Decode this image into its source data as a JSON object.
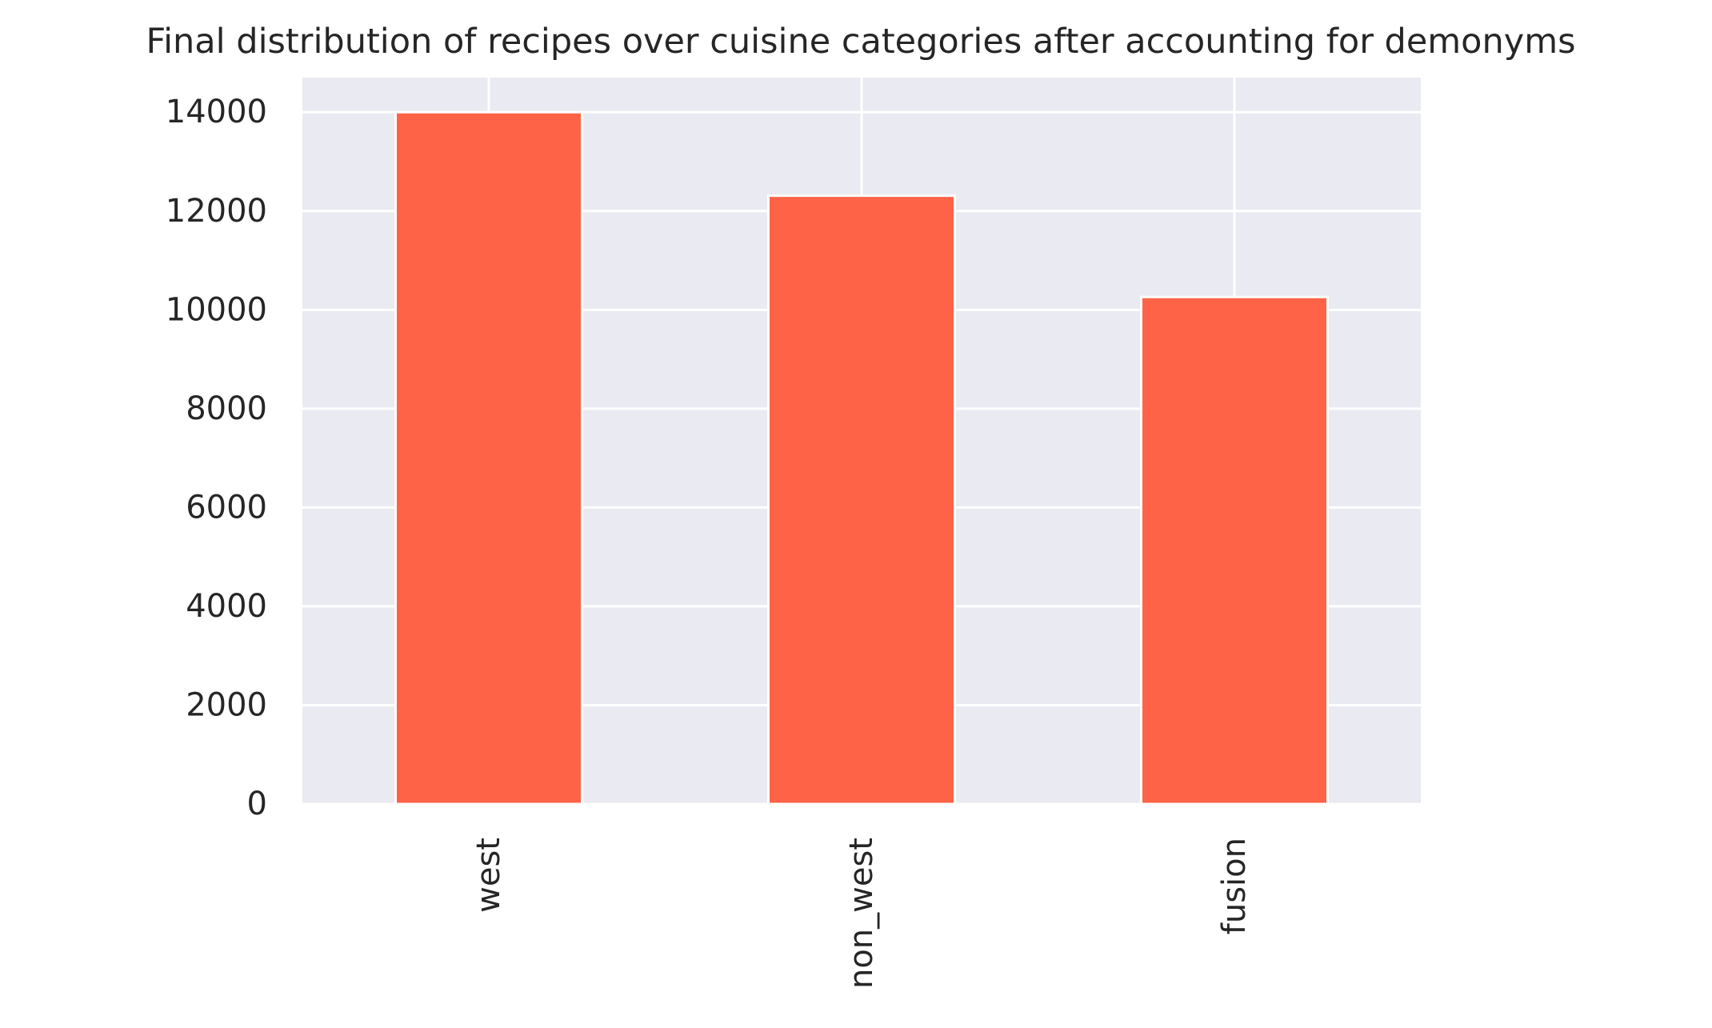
{
  "chart_data": {
    "type": "bar",
    "title": "Final distribution of recipes over cuisine categories after accounting for demonyms",
    "categories": [
      "west",
      "non_west",
      "fusion"
    ],
    "values": [
      14000,
      12310,
      10260
    ],
    "ylim": [
      0,
      14700
    ],
    "yticks": [
      0,
      2000,
      4000,
      6000,
      8000,
      10000,
      12000,
      14000
    ],
    "grid": true,
    "bar_color": "#ff6347",
    "plot_background": "#eaeaf2",
    "grid_color": "#ffffff",
    "xlabel": "",
    "ylabel": ""
  }
}
